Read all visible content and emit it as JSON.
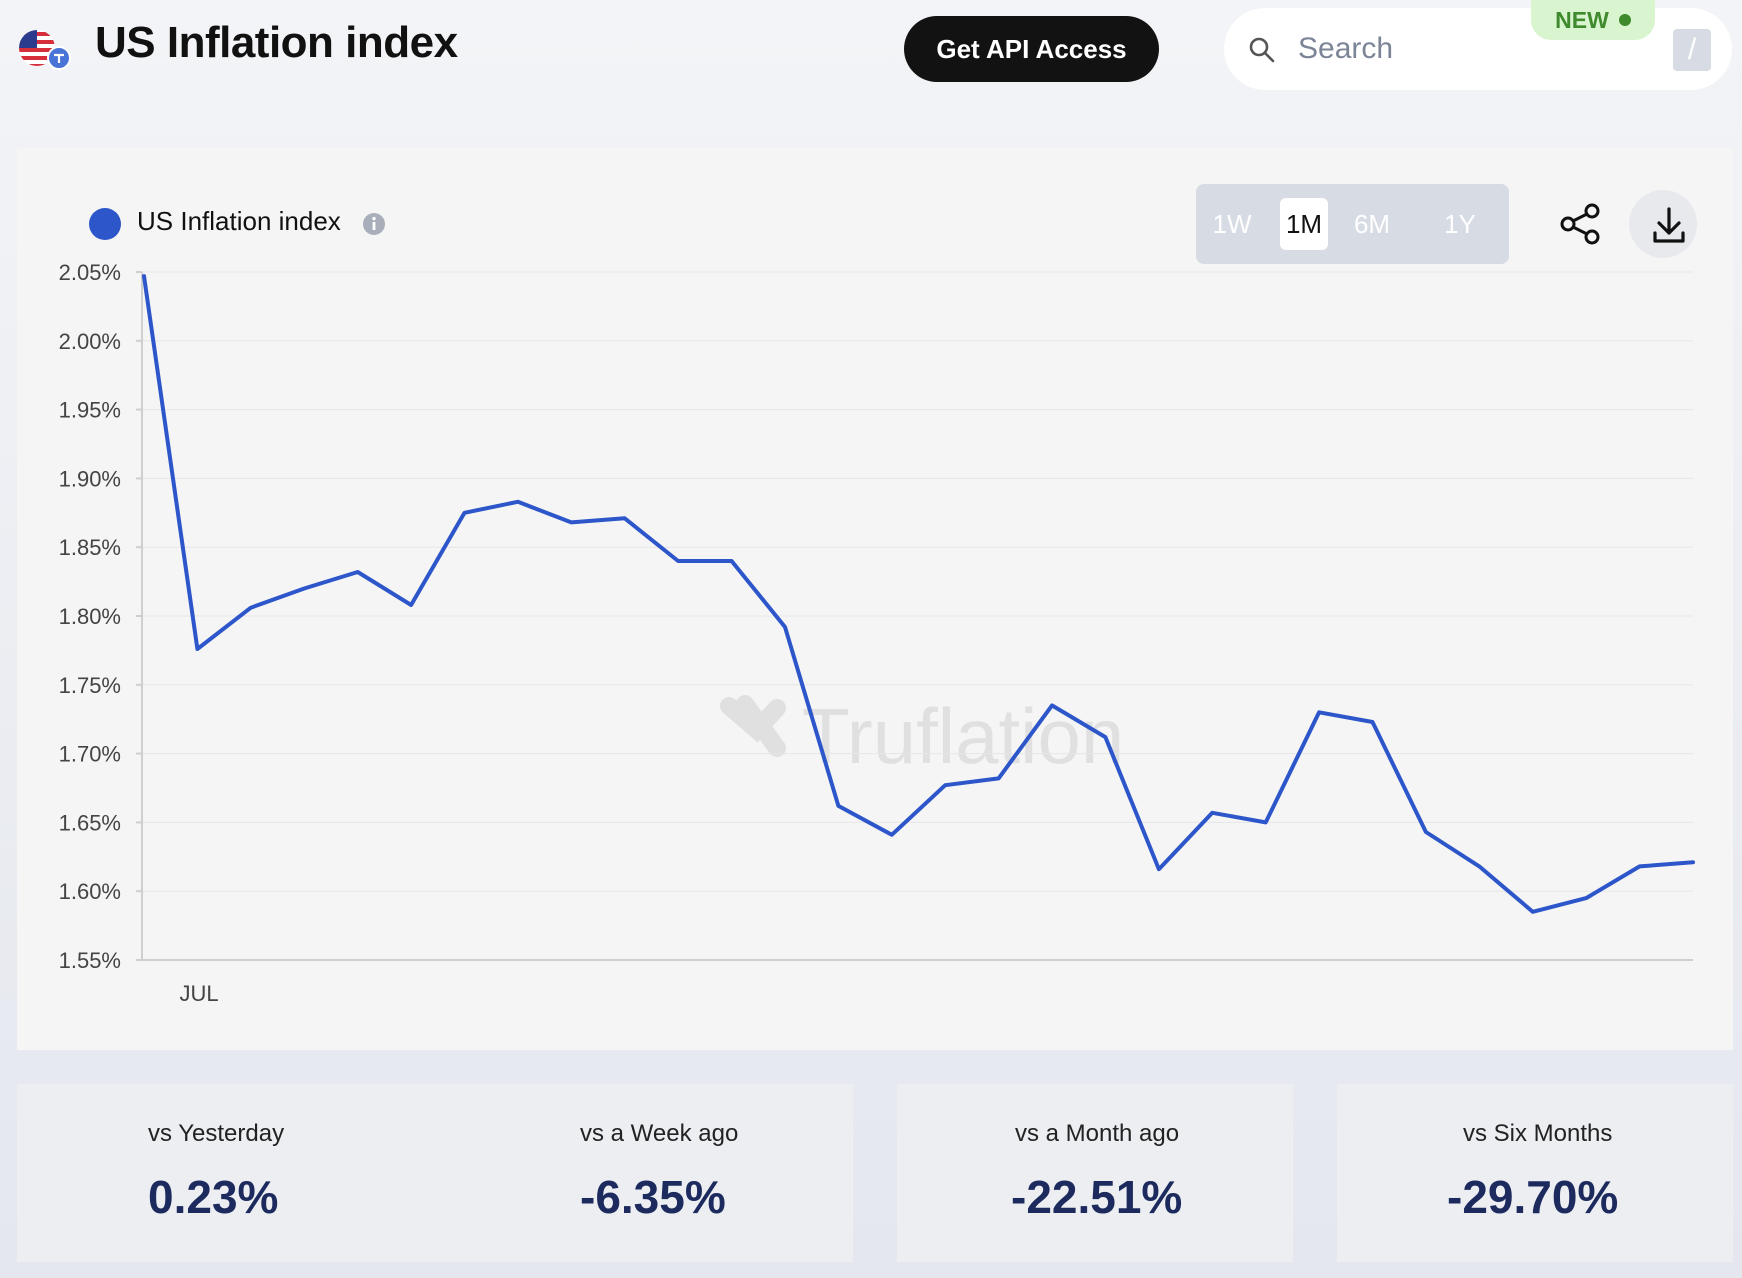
{
  "header": {
    "title": "US Inflation index",
    "api_button": "Get API Access",
    "search_placeholder": "Search",
    "new_badge": "NEW",
    "shortcut_key": "/"
  },
  "legend": {
    "label": "US Inflation index"
  },
  "range_buttons": [
    "1W",
    "1M",
    "6M",
    "1Y"
  ],
  "active_range": "1M",
  "watermark": "Truflation",
  "chart_data": {
    "type": "line",
    "series": [
      {
        "name": "US Inflation index",
        "color": "#2c56c9",
        "values": [
          2.047,
          1.776,
          1.806,
          1.82,
          1.832,
          1.808,
          1.875,
          1.883,
          1.868,
          1.871,
          1.84,
          1.84,
          1.792,
          1.662,
          1.641,
          1.677,
          1.682,
          1.735,
          1.712,
          1.616,
          1.657,
          1.65,
          1.73,
          1.723,
          1.643,
          1.618,
          1.585,
          1.595,
          1.618,
          1.621
        ]
      }
    ],
    "y_ticks": [
      "2.05%",
      "2.00%",
      "1.95%",
      "1.90%",
      "1.85%",
      "1.80%",
      "1.75%",
      "1.70%",
      "1.65%",
      "1.60%",
      "1.55%"
    ],
    "ylim": [
      1.55,
      2.05
    ],
    "x_tick_labels": [
      "JUL"
    ],
    "grid": true
  },
  "stats": [
    {
      "label": "vs Yesterday",
      "value": "0.23%"
    },
    {
      "label": "vs a Week ago",
      "value": "-6.35%"
    },
    {
      "label": "vs a Month ago",
      "value": "-22.51%"
    },
    {
      "label": "vs Six Months",
      "value": "-29.70%"
    }
  ]
}
